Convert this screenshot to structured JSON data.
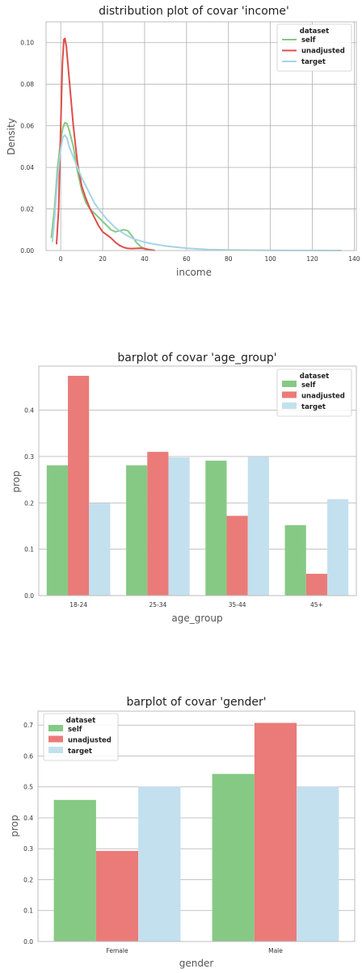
{
  "colors": {
    "self": "#86c984",
    "unadjusted": "#ea7b79",
    "target": "#c3e0ef",
    "self_line": "#86c984",
    "unadjusted_line": "#de4e4a",
    "target_line": "#a6d3e6"
  },
  "chart_data": [
    {
      "type": "line",
      "title": "distribution plot of covar 'income'",
      "xlabel": "income",
      "ylabel": "Density",
      "xlim": [
        -7,
        141
      ],
      "ylim": [
        0,
        0.11
      ],
      "xticks": [
        0,
        20,
        40,
        60,
        80,
        100,
        120,
        140
      ],
      "yticks": [
        0.0,
        0.02,
        0.04,
        0.06,
        0.08,
        0.1
      ],
      "xtick_labels": [
        "0",
        "20",
        "40",
        "60",
        "80",
        "100",
        "120",
        "140"
      ],
      "ytick_labels": [
        "0.00",
        "0.02",
        "0.04",
        "0.06",
        "0.08",
        "0.10"
      ],
      "legend_title": "dataset",
      "legend_position": "top-right",
      "grid": true,
      "series": [
        {
          "name": "self",
          "color_key": "self_line",
          "points": [
            [
              -4.5,
              0.006
            ],
            [
              -3,
              0.02
            ],
            [
              -1.5,
              0.04
            ],
            [
              0,
              0.053
            ],
            [
              1,
              0.059
            ],
            [
              2,
              0.0615
            ],
            [
              3,
              0.061
            ],
            [
              4,
              0.058
            ],
            [
              6,
              0.05
            ],
            [
              8,
              0.038
            ],
            [
              10,
              0.029
            ],
            [
              12,
              0.023
            ],
            [
              14,
              0.02
            ],
            [
              16,
              0.018
            ],
            [
              18,
              0.016
            ],
            [
              20,
              0.014
            ],
            [
              22,
              0.012
            ],
            [
              24,
              0.01
            ],
            [
              26,
              0.009
            ],
            [
              28,
              0.0095
            ],
            [
              30,
              0.01
            ],
            [
              32,
              0.0095
            ],
            [
              34,
              0.007
            ],
            [
              36,
              0.004
            ],
            [
              38,
              0.002
            ],
            [
              40,
              0.0008
            ],
            [
              42,
              0.0002
            ],
            [
              44,
              0
            ]
          ]
        },
        {
          "name": "unadjusted",
          "color_key": "unadjusted_line",
          "points": [
            [
              -2,
              0.003
            ],
            [
              -1,
              0.02
            ],
            [
              0,
              0.06
            ],
            [
              0.8,
              0.09
            ],
            [
              1.5,
              0.1015
            ],
            [
              2,
              0.102
            ],
            [
              2.7,
              0.098
            ],
            [
              4,
              0.083
            ],
            [
              6,
              0.06
            ],
            [
              8,
              0.042
            ],
            [
              10,
              0.031
            ],
            [
              12,
              0.025
            ],
            [
              14,
              0.02
            ],
            [
              16,
              0.016
            ],
            [
              18,
              0.012
            ],
            [
              20,
              0.009
            ],
            [
              22,
              0.0075
            ],
            [
              24,
              0.006
            ],
            [
              26,
              0.004
            ],
            [
              28,
              0.0025
            ],
            [
              30,
              0.0015
            ],
            [
              32,
              0.001
            ],
            [
              34,
              0.0009
            ],
            [
              36,
              0.001
            ],
            [
              38,
              0.0011
            ],
            [
              40,
              0.0009
            ],
            [
              42,
              0.0005
            ],
            [
              44,
              0.0002
            ],
            [
              45,
              0
            ]
          ]
        },
        {
          "name": "target",
          "color_key": "target_line",
          "points": [
            [
              -4,
              0.004
            ],
            [
              -3,
              0.015
            ],
            [
              -1.5,
              0.035
            ],
            [
              0,
              0.049
            ],
            [
              1,
              0.0545
            ],
            [
              2,
              0.0555
            ],
            [
              3,
              0.054
            ],
            [
              4,
              0.05
            ],
            [
              6,
              0.045
            ],
            [
              8,
              0.04
            ],
            [
              10,
              0.035
            ],
            [
              12,
              0.031
            ],
            [
              14,
              0.027
            ],
            [
              16,
              0.023
            ],
            [
              18,
              0.02
            ],
            [
              20,
              0.0175
            ],
            [
              22,
              0.015
            ],
            [
              24,
              0.013
            ],
            [
              26,
              0.011
            ],
            [
              28,
              0.0095
            ],
            [
              30,
              0.0082
            ],
            [
              32,
              0.007
            ],
            [
              35,
              0.0055
            ],
            [
              40,
              0.004
            ],
            [
              45,
              0.003
            ],
            [
              50,
              0.0022
            ],
            [
              55,
              0.0016
            ],
            [
              60,
              0.0011
            ],
            [
              65,
              0.0008
            ],
            [
              70,
              0.0005
            ],
            [
              80,
              0.0003
            ],
            [
              90,
              0.0002
            ],
            [
              100,
              0.0001
            ],
            [
              110,
              6e-05
            ],
            [
              120,
              3e-05
            ],
            [
              130,
              1e-05
            ],
            [
              134,
              0
            ]
          ]
        }
      ]
    },
    {
      "type": "bar",
      "title": "barplot of covar 'age_group'",
      "xlabel": "age_group",
      "ylabel": "prop",
      "categories": [
        "18-24",
        "25-34",
        "35-44",
        "45+"
      ],
      "ylim": [
        0,
        0.495
      ],
      "yticks": [
        0.0,
        0.1,
        0.2,
        0.3,
        0.4
      ],
      "ytick_labels": [
        "0.0",
        "0.1",
        "0.2",
        "0.3",
        "0.4"
      ],
      "legend_title": "dataset",
      "legend_position": "top-right",
      "grid": true,
      "series": [
        {
          "name": "self",
          "color_key": "self",
          "values": [
            0.281,
            0.281,
            0.291,
            0.152
          ]
        },
        {
          "name": "unadjusted",
          "color_key": "unadjusted",
          "values": [
            0.474,
            0.31,
            0.172,
            0.047
          ]
        },
        {
          "name": "target",
          "color_key": "target",
          "values": [
            0.199,
            0.298,
            0.299,
            0.208
          ]
        }
      ]
    },
    {
      "type": "bar",
      "title": "barplot of covar 'gender'",
      "xlabel": "gender",
      "ylabel": "prop",
      "categories": [
        "Female",
        "Male"
      ],
      "ylim": [
        0,
        0.745
      ],
      "yticks": [
        0.0,
        0.1,
        0.2,
        0.3,
        0.4,
        0.5,
        0.6,
        0.7
      ],
      "ytick_labels": [
        "0.0",
        "0.1",
        "0.2",
        "0.3",
        "0.4",
        "0.5",
        "0.6",
        "0.7"
      ],
      "legend_title": "dataset",
      "legend_position": "top-left",
      "grid": true,
      "series": [
        {
          "name": "self",
          "color_key": "self",
          "values": [
            0.458,
            0.542
          ]
        },
        {
          "name": "unadjusted",
          "color_key": "unadjusted",
          "values": [
            0.293,
            0.707
          ]
        },
        {
          "name": "target",
          "color_key": "target",
          "values": [
            0.5,
            0.5
          ]
        }
      ]
    }
  ]
}
